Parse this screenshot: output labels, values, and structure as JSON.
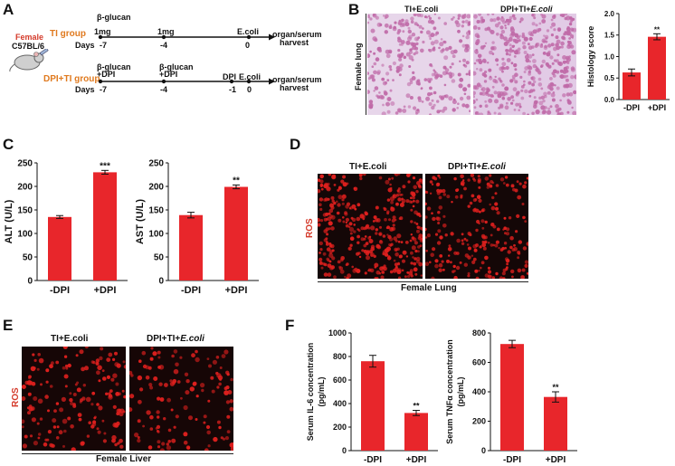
{
  "panel_letters": {
    "a": "A",
    "b": "B",
    "c": "C",
    "d": "D",
    "e": "E",
    "f": "F"
  },
  "panel_a": {
    "mouse_label": "Female",
    "strain": "C57BL/6",
    "ti_group": "TI group",
    "dpi_group": "DPI+TI group",
    "days": "Days",
    "beta_glucan": "β-glucan",
    "dose": "1mg",
    "ecoli": "E.coli",
    "harvest_1": "organ/serum",
    "harvest_2": "harvest",
    "plus_dpi": "+DPI",
    "dpi": "DPI",
    "day_m7": "-7",
    "day_m4": "-4",
    "day_m1": "-1",
    "day_0": "0"
  },
  "panel_b": {
    "ti_ecoli_prefix": "TI+",
    "ecoli": "E.coli",
    "dpi_ti_prefix": "DPI+TI+",
    "side_label": "Female lung"
  },
  "panel_d": {
    "row_label": "ROS",
    "footer": "Female Lung"
  },
  "panel_e": {
    "row_label": "ROS",
    "footer": "Female Liver"
  },
  "colors": {
    "bar": "#e8262b",
    "tissue_pink": "#c06aa8",
    "ros_bg": "#140707",
    "ros_dot": "#e0201e"
  },
  "chart_data": [
    {
      "id": "histology",
      "type": "bar",
      "categories": [
        "-DPI",
        "+DPI"
      ],
      "values": [
        0.63,
        1.46
      ],
      "errors": [
        0.08,
        0.07
      ],
      "significance": [
        "",
        "**"
      ],
      "ylabel": "Histology score",
      "ylim": [
        0,
        2.0
      ],
      "yticks": [
        "0.0",
        "0.5",
        "1.0",
        "1.5",
        "2.0"
      ]
    },
    {
      "id": "alt",
      "type": "bar",
      "categories": [
        "-DPI",
        "+DPI"
      ],
      "values": [
        135,
        230
      ],
      "errors": [
        3,
        4
      ],
      "significance": [
        "",
        "***"
      ],
      "ylabel": "ALT (U/L)",
      "ylim": [
        0,
        250
      ],
      "yticks": [
        "0",
        "50",
        "100",
        "150",
        "200",
        "250"
      ]
    },
    {
      "id": "ast",
      "type": "bar",
      "categories": [
        "-DPI",
        "+DPI"
      ],
      "values": [
        139,
        199
      ],
      "errors": [
        6,
        4
      ],
      "significance": [
        "",
        "**"
      ],
      "ylabel": "AST (U/L)",
      "ylim": [
        0,
        250
      ],
      "yticks": [
        "0",
        "50",
        "100",
        "150",
        "200",
        "250"
      ]
    },
    {
      "id": "il6",
      "type": "bar",
      "categories": [
        "-DPI",
        "+DPI"
      ],
      "values": [
        760,
        320
      ],
      "errors": [
        50,
        22
      ],
      "significance": [
        "",
        "**"
      ],
      "ylabel": "Serum IL-6 concentration (pg/mL)",
      "ylim": [
        0,
        1000
      ],
      "yticks": [
        "0",
        "200",
        "400",
        "600",
        "800",
        "1000"
      ]
    },
    {
      "id": "tnfa",
      "type": "bar",
      "categories": [
        "-DPI",
        "+DPI"
      ],
      "values": [
        725,
        365
      ],
      "errors": [
        25,
        35
      ],
      "significance": [
        "",
        "**"
      ],
      "ylabel": "Serum TNFα concentration (pg/mL)",
      "ylim": [
        0,
        800
      ],
      "yticks": [
        "0",
        "200",
        "400",
        "600",
        "800"
      ]
    }
  ]
}
